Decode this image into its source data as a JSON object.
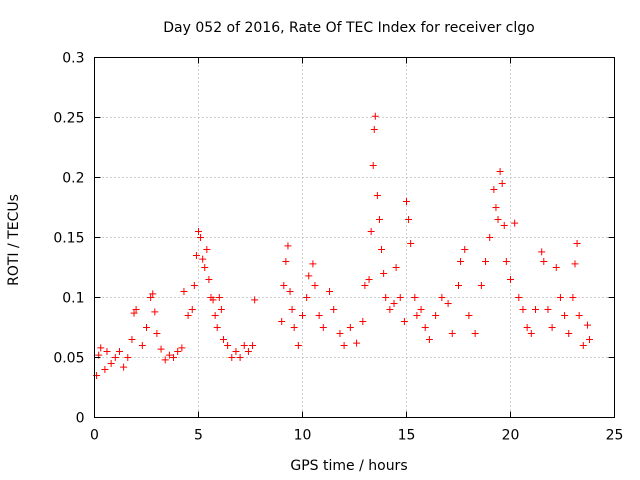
{
  "chart_data": {
    "type": "scatter",
    "title": "Day 052 of 2016, Rate Of TEC Index for receiver clgo",
    "xlabel": "GPS time / hours",
    "ylabel": "ROTI / TECUs",
    "xlim": [
      0,
      25
    ],
    "ylim": [
      0,
      0.3
    ],
    "xticks": [
      0,
      5,
      10,
      15,
      20,
      25
    ],
    "xtick_labels": [
      "0",
      "5",
      "10",
      "15",
      "20",
      "25"
    ],
    "yticks": [
      0,
      0.05,
      0.1,
      0.15,
      0.2,
      0.25,
      0.3
    ],
    "ytick_labels": [
      "0",
      "0.05",
      "0.1",
      "0.15",
      "0.2",
      "0.25",
      "0.3"
    ],
    "grid": true,
    "marker": "+",
    "color": "#ff0000",
    "series": [
      {
        "name": "ROTI",
        "points": [
          [
            0.1,
            0.035
          ],
          [
            0.2,
            0.052
          ],
          [
            0.3,
            0.058
          ],
          [
            0.5,
            0.04
          ],
          [
            0.6,
            0.055
          ],
          [
            0.8,
            0.045
          ],
          [
            1.0,
            0.05
          ],
          [
            1.2,
            0.055
          ],
          [
            1.4,
            0.042
          ],
          [
            1.6,
            0.05
          ],
          [
            1.8,
            0.065
          ],
          [
            1.9,
            0.087
          ],
          [
            2.0,
            0.09
          ],
          [
            2.3,
            0.06
          ],
          [
            2.5,
            0.075
          ],
          [
            2.7,
            0.1
          ],
          [
            2.8,
            0.103
          ],
          [
            2.9,
            0.088
          ],
          [
            3.0,
            0.07
          ],
          [
            3.2,
            0.057
          ],
          [
            3.4,
            0.048
          ],
          [
            3.6,
            0.052
          ],
          [
            3.8,
            0.05
          ],
          [
            4.0,
            0.055
          ],
          [
            4.2,
            0.058
          ],
          [
            4.3,
            0.105
          ],
          [
            4.5,
            0.085
          ],
          [
            4.7,
            0.09
          ],
          [
            4.8,
            0.11
          ],
          [
            4.9,
            0.135
          ],
          [
            5.0,
            0.155
          ],
          [
            5.1,
            0.15
          ],
          [
            5.2,
            0.132
          ],
          [
            5.3,
            0.125
          ],
          [
            5.4,
            0.14
          ],
          [
            5.5,
            0.115
          ],
          [
            5.6,
            0.1
          ],
          [
            5.7,
            0.098
          ],
          [
            5.8,
            0.085
          ],
          [
            5.9,
            0.075
          ],
          [
            6.0,
            0.1
          ],
          [
            6.1,
            0.09
          ],
          [
            6.2,
            0.065
          ],
          [
            6.4,
            0.06
          ],
          [
            6.6,
            0.05
          ],
          [
            6.8,
            0.055
          ],
          [
            7.0,
            0.05
          ],
          [
            7.2,
            0.06
          ],
          [
            7.4,
            0.055
          ],
          [
            7.6,
            0.06
          ],
          [
            7.7,
            0.098
          ],
          [
            9.0,
            0.08
          ],
          [
            9.1,
            0.11
          ],
          [
            9.2,
            0.13
          ],
          [
            9.3,
            0.143
          ],
          [
            9.4,
            0.105
          ],
          [
            9.5,
            0.09
          ],
          [
            9.6,
            0.075
          ],
          [
            9.8,
            0.06
          ],
          [
            10.0,
            0.085
          ],
          [
            10.2,
            0.1
          ],
          [
            10.3,
            0.118
          ],
          [
            10.5,
            0.128
          ],
          [
            10.6,
            0.11
          ],
          [
            10.8,
            0.085
          ],
          [
            11.0,
            0.075
          ],
          [
            11.3,
            0.105
          ],
          [
            11.5,
            0.09
          ],
          [
            11.8,
            0.07
          ],
          [
            12.0,
            0.06
          ],
          [
            12.3,
            0.075
          ],
          [
            12.6,
            0.062
          ],
          [
            12.9,
            0.08
          ],
          [
            13.0,
            0.11
          ],
          [
            13.2,
            0.115
          ],
          [
            13.3,
            0.155
          ],
          [
            13.4,
            0.21
          ],
          [
            13.45,
            0.24
          ],
          [
            13.5,
            0.251
          ],
          [
            13.6,
            0.185
          ],
          [
            13.7,
            0.165
          ],
          [
            13.8,
            0.14
          ],
          [
            13.9,
            0.12
          ],
          [
            14.0,
            0.1
          ],
          [
            14.2,
            0.09
          ],
          [
            14.4,
            0.095
          ],
          [
            14.5,
            0.125
          ],
          [
            14.7,
            0.1
          ],
          [
            14.9,
            0.08
          ],
          [
            15.0,
            0.18
          ],
          [
            15.1,
            0.165
          ],
          [
            15.2,
            0.145
          ],
          [
            15.4,
            0.1
          ],
          [
            15.5,
            0.085
          ],
          [
            15.7,
            0.09
          ],
          [
            15.9,
            0.075
          ],
          [
            16.1,
            0.065
          ],
          [
            16.4,
            0.085
          ],
          [
            16.7,
            0.1
          ],
          [
            17.0,
            0.095
          ],
          [
            17.2,
            0.07
          ],
          [
            17.5,
            0.11
          ],
          [
            17.6,
            0.13
          ],
          [
            17.8,
            0.14
          ],
          [
            18.0,
            0.085
          ],
          [
            18.3,
            0.07
          ],
          [
            18.6,
            0.11
          ],
          [
            18.8,
            0.13
          ],
          [
            19.0,
            0.15
          ],
          [
            19.2,
            0.19
          ],
          [
            19.3,
            0.175
          ],
          [
            19.4,
            0.165
          ],
          [
            19.5,
            0.205
          ],
          [
            19.6,
            0.195
          ],
          [
            19.7,
            0.16
          ],
          [
            19.8,
            0.13
          ],
          [
            20.0,
            0.115
          ],
          [
            20.2,
            0.162
          ],
          [
            20.4,
            0.1
          ],
          [
            20.6,
            0.09
          ],
          [
            20.8,
            0.075
          ],
          [
            21.0,
            0.07
          ],
          [
            21.2,
            0.09
          ],
          [
            21.5,
            0.138
          ],
          [
            21.6,
            0.13
          ],
          [
            21.8,
            0.09
          ],
          [
            22.0,
            0.075
          ],
          [
            22.2,
            0.125
          ],
          [
            22.4,
            0.1
          ],
          [
            22.6,
            0.085
          ],
          [
            22.8,
            0.07
          ],
          [
            23.0,
            0.1
          ],
          [
            23.1,
            0.128
          ],
          [
            23.2,
            0.145
          ],
          [
            23.3,
            0.085
          ],
          [
            23.5,
            0.06
          ],
          [
            23.7,
            0.077
          ],
          [
            23.8,
            0.065
          ]
        ]
      }
    ]
  }
}
